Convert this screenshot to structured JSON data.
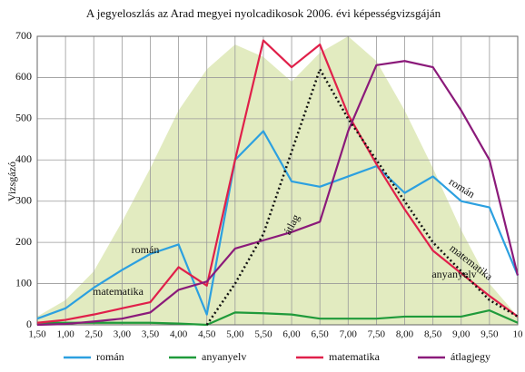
{
  "chart_data": {
    "type": "line",
    "title": "A jegyeloszlás az Arad megyei nyolcadikosok 2006. évi képességvizsgáján",
    "ylabel": "Vizsgázó",
    "categories": [
      "1,50",
      "1,00",
      "2,50",
      "3,00",
      "3,50",
      "4,00",
      "4,50",
      "5,00",
      "5,50",
      "6,00",
      "6,50",
      "7,00",
      "7,50",
      "8,00",
      "8,50",
      "9,00",
      "9,50",
      "10"
    ],
    "ylim": [
      0,
      700
    ],
    "yticks": [
      0,
      100,
      200,
      300,
      400,
      500,
      600,
      700
    ],
    "grid": true,
    "area": {
      "color": "#e2ebc0",
      "values": [
        20,
        60,
        130,
        250,
        380,
        520,
        620,
        680,
        650,
        590,
        660,
        700,
        640,
        520,
        380,
        230,
        100,
        20
      ]
    },
    "series": [
      {
        "name": "román",
        "color": "#2ca0e0",
        "values": [
          15,
          40,
          90,
          133,
          172,
          195,
          25,
          400,
          470,
          348,
          335,
          360,
          385,
          320,
          360,
          300,
          285,
          120
        ]
      },
      {
        "name": "anyanyelv",
        "color": "#1f9a3a",
        "values": [
          5,
          5,
          5,
          5,
          5,
          3,
          0,
          30,
          28,
          25,
          15,
          15,
          15,
          20,
          20,
          20,
          35,
          5
        ]
      },
      {
        "name": "matematika",
        "color": "#e0204a",
        "values": [
          5,
          12,
          25,
          40,
          55,
          140,
          95,
          400,
          690,
          625,
          680,
          510,
          390,
          280,
          180,
          125,
          70,
          20
        ]
      },
      {
        "name": "átlagjegy",
        "color": "#8b1a7a",
        "values": [
          0,
          2,
          8,
          15,
          30,
          85,
          105,
          185,
          205,
          225,
          250,
          470,
          630,
          640,
          625,
          520,
          400,
          120
        ]
      }
    ],
    "average": {
      "color": "#111111",
      "values": [
        null,
        null,
        null,
        null,
        null,
        null,
        0,
        100,
        220,
        420,
        620,
        500,
        400,
        300,
        200,
        130,
        60,
        20
      ]
    },
    "annotations": [
      "román",
      "matematika",
      "átlag",
      "anyanyelv",
      "román",
      "matematika"
    ]
  }
}
